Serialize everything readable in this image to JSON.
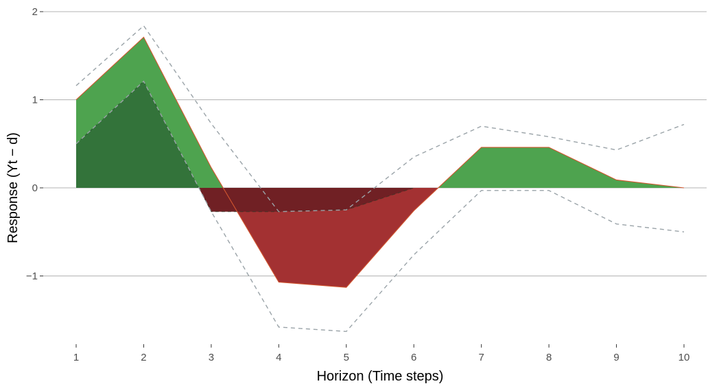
{
  "chart_data": {
    "type": "area",
    "title": "",
    "xlabel": "Horizon (Time steps)",
    "ylabel": "Response (Yt − d)",
    "x": [
      1,
      2,
      3,
      4,
      5,
      6,
      7,
      8,
      9,
      10
    ],
    "xlim": [
      1,
      10
    ],
    "ylim": [
      -1.65,
      2.05
    ],
    "x_ticks": [
      "1",
      "2",
      "3",
      "4",
      "5",
      "6",
      "7",
      "8",
      "9",
      "10"
    ],
    "y_ticks": [
      {
        "value": 2,
        "label": "2"
      },
      {
        "value": 1,
        "label": "1"
      },
      {
        "value": 0,
        "label": "0"
      },
      {
        "value": -1,
        "label": "−1"
      }
    ],
    "grid": "horizontal",
    "series": [
      {
        "role": "response",
        "values": [
          1.0,
          1.71,
          0.23,
          -1.07,
          -1.13,
          -0.26,
          0.46,
          0.46,
          0.09,
          0.0
        ]
      },
      {
        "role": "inner",
        "values": [
          0.5,
          1.21,
          -0.27,
          -0.27,
          -0.25,
          0.0,
          0.0,
          0.0,
          0.0,
          0.0
        ]
      },
      {
        "role": "upper_band",
        "values": [
          1.16,
          1.84,
          0.73,
          -0.27,
          -0.25,
          0.35,
          0.7,
          0.58,
          0.43,
          0.72
        ]
      },
      {
        "role": "lower_band",
        "values": [
          0.5,
          1.21,
          -0.27,
          -1.58,
          -1.63,
          -0.76,
          -0.03,
          -0.03,
          -0.41,
          -0.5
        ]
      }
    ],
    "colors": {
      "positive": "#4ea34f",
      "negative": "#a33132",
      "positive_inner": "#33733a",
      "negative_inner": "#702024",
      "response_line": "#d2562f",
      "band_line": "#9aa3a8",
      "grid": "#b3b3b3"
    }
  }
}
